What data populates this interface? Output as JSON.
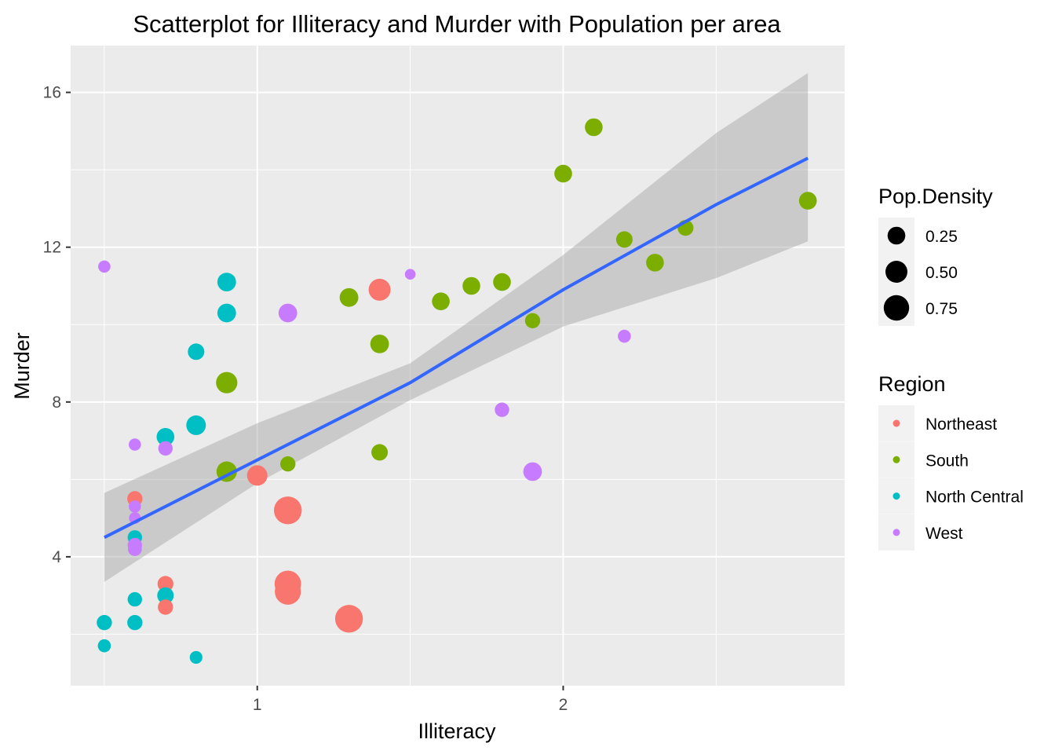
{
  "chart_data": {
    "type": "scatter",
    "title": "Scatterplot for Illiteracy and Murder with Population per area",
    "xlabel": "Illiteracy",
    "ylabel": "Murder",
    "xlim": [
      0.39,
      2.92
    ],
    "ylim": [
      0.67,
      17.21
    ],
    "x_ticks": [
      1,
      2
    ],
    "x_tick_labels": [
      "1",
      "2"
    ],
    "y_ticks": [
      4,
      8,
      12,
      16
    ],
    "y_tick_labels": [
      "4",
      "8",
      "12",
      "16"
    ],
    "grid": true,
    "legend_position": "right",
    "size_legend": {
      "title": "Pop.Density",
      "values": [
        0.25,
        0.5,
        0.75
      ],
      "labels": [
        "0.25",
        "0.50",
        "0.75"
      ]
    },
    "color_legend": {
      "title": "Region",
      "entries": [
        {
          "name": "Northeast",
          "color": "#F8766D"
        },
        {
          "name": "South",
          "color": "#7CAE00"
        },
        {
          "name": "North Central",
          "color": "#00BFC4"
        },
        {
          "name": "West",
          "color": "#C77CFF"
        }
      ]
    },
    "points": [
      {
        "x": 0.5,
        "y": 11.5,
        "region": "West",
        "density": 0.06
      },
      {
        "x": 0.5,
        "y": 2.3,
        "region": "North Central",
        "density": 0.15
      },
      {
        "x": 0.5,
        "y": 1.7,
        "region": "North Central",
        "density": 0.08
      },
      {
        "x": 0.6,
        "y": 6.9,
        "region": "West",
        "density": 0.06
      },
      {
        "x": 0.6,
        "y": 5.5,
        "region": "Northeast",
        "density": 0.15
      },
      {
        "x": 0.6,
        "y": 5.3,
        "region": "West",
        "density": 0.06
      },
      {
        "x": 0.6,
        "y": 5.0,
        "region": "West",
        "density": 0.05
      },
      {
        "x": 0.6,
        "y": 4.5,
        "region": "North Central",
        "density": 0.12
      },
      {
        "x": 0.6,
        "y": 4.3,
        "region": "West",
        "density": 0.12
      },
      {
        "x": 0.6,
        "y": 4.2,
        "region": "West",
        "density": 0.1
      },
      {
        "x": 0.6,
        "y": 2.9,
        "region": "North Central",
        "density": 0.12
      },
      {
        "x": 0.6,
        "y": 2.3,
        "region": "North Central",
        "density": 0.15
      },
      {
        "x": 0.7,
        "y": 7.1,
        "region": "North Central",
        "density": 0.25
      },
      {
        "x": 0.7,
        "y": 6.8,
        "region": "West",
        "density": 0.12
      },
      {
        "x": 0.7,
        "y": 3.3,
        "region": "Northeast",
        "density": 0.17
      },
      {
        "x": 0.7,
        "y": 3.0,
        "region": "North Central",
        "density": 0.2
      },
      {
        "x": 0.7,
        "y": 2.7,
        "region": "Northeast",
        "density": 0.15
      },
      {
        "x": 0.8,
        "y": 9.3,
        "region": "North Central",
        "density": 0.2
      },
      {
        "x": 0.8,
        "y": 7.4,
        "region": "North Central",
        "density": 0.35
      },
      {
        "x": 0.8,
        "y": 1.4,
        "region": "North Central",
        "density": 0.07
      },
      {
        "x": 0.9,
        "y": 11.1,
        "region": "North Central",
        "density": 0.3
      },
      {
        "x": 0.9,
        "y": 10.3,
        "region": "North Central",
        "density": 0.3
      },
      {
        "x": 0.9,
        "y": 8.5,
        "region": "South",
        "density": 0.45
      },
      {
        "x": 0.9,
        "y": 6.2,
        "region": "South",
        "density": 0.4
      },
      {
        "x": 1.0,
        "y": 6.1,
        "region": "Northeast",
        "density": 0.4
      },
      {
        "x": 1.1,
        "y": 10.3,
        "region": "West",
        "density": 0.3
      },
      {
        "x": 1.1,
        "y": 6.4,
        "region": "South",
        "density": 0.15
      },
      {
        "x": 1.1,
        "y": 5.2,
        "region": "Northeast",
        "density": 0.95
      },
      {
        "x": 1.1,
        "y": 3.3,
        "region": "Northeast",
        "density": 0.85
      },
      {
        "x": 1.1,
        "y": 3.1,
        "region": "Northeast",
        "density": 0.8
      },
      {
        "x": 1.3,
        "y": 10.7,
        "region": "South",
        "density": 0.3
      },
      {
        "x": 1.3,
        "y": 2.4,
        "region": "Northeast",
        "density": 0.95
      },
      {
        "x": 1.4,
        "y": 10.9,
        "region": "Northeast",
        "density": 0.5
      },
      {
        "x": 1.4,
        "y": 9.5,
        "region": "South",
        "density": 0.3
      },
      {
        "x": 1.4,
        "y": 6.7,
        "region": "South",
        "density": 0.2
      },
      {
        "x": 1.5,
        "y": 11.3,
        "region": "West",
        "density": 0.03
      },
      {
        "x": 1.6,
        "y": 10.6,
        "region": "South",
        "density": 0.25
      },
      {
        "x": 1.7,
        "y": 11.0,
        "region": "South",
        "density": 0.25
      },
      {
        "x": 1.8,
        "y": 11.1,
        "region": "South",
        "density": 0.25
      },
      {
        "x": 1.8,
        "y": 7.8,
        "region": "West",
        "density": 0.12
      },
      {
        "x": 1.9,
        "y": 10.1,
        "region": "South",
        "density": 0.15
      },
      {
        "x": 1.9,
        "y": 6.2,
        "region": "West",
        "density": 0.3
      },
      {
        "x": 2.0,
        "y": 13.9,
        "region": "South",
        "density": 0.25
      },
      {
        "x": 2.1,
        "y": 15.1,
        "region": "South",
        "density": 0.25
      },
      {
        "x": 2.2,
        "y": 12.2,
        "region": "South",
        "density": 0.2
      },
      {
        "x": 2.2,
        "y": 9.7,
        "region": "West",
        "density": 0.08
      },
      {
        "x": 2.3,
        "y": 11.6,
        "region": "South",
        "density": 0.25
      },
      {
        "x": 2.4,
        "y": 12.5,
        "region": "South",
        "density": 0.17
      },
      {
        "x": 2.8,
        "y": 13.2,
        "region": "South",
        "density": 0.25
      }
    ],
    "regression": {
      "color": "#3366FF",
      "x": [
        0.5,
        1.0,
        1.5,
        2.0,
        2.5,
        2.8
      ],
      "y": [
        4.5,
        6.5,
        8.5,
        10.9,
        13.1,
        14.3
      ],
      "ci_lower": [
        3.35,
        5.9,
        8.05,
        9.95,
        11.2,
        12.15
      ],
      "ci_upper": [
        5.65,
        7.45,
        9.0,
        11.8,
        14.95,
        16.5
      ]
    }
  }
}
